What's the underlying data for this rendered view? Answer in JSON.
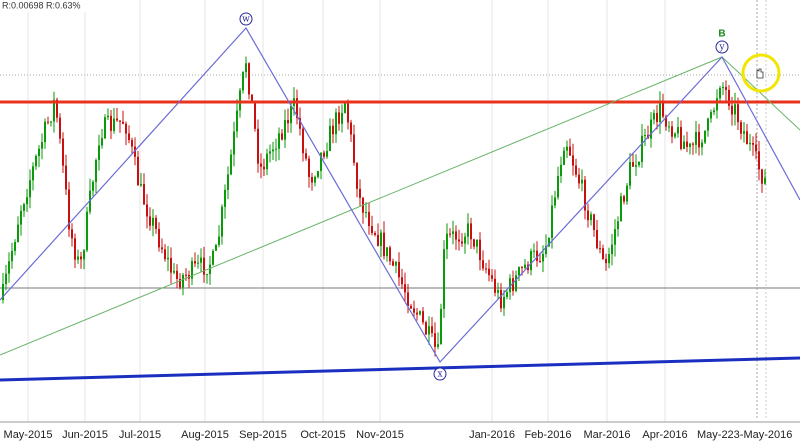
{
  "header": {
    "stats": "R:0.00698 R:0.63%"
  },
  "wave_labels": {
    "w": "w",
    "x": "x",
    "y": "y",
    "b": "B"
  },
  "x_axis": {
    "labels": [
      "May-2015",
      "Jun-2015",
      "Jul-2015",
      "Aug-2015",
      "Sep-2015",
      "Oct-2015",
      "Nov-2015",
      "Jan-2016",
      "Feb-2016",
      "Mar-2016",
      "Apr-2016",
      "May-223-May-2016"
    ]
  }
}
